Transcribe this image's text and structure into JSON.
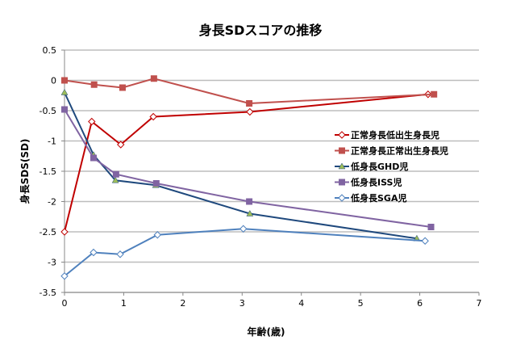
{
  "chart_data": {
    "type": "line",
    "title": "身長SDスコアの推移",
    "xlabel": "年齢(歳)",
    "ylabel": "身長SDS(SD)",
    "xlim": [
      0,
      7
    ],
    "ylim": [
      -3.5,
      0.5
    ],
    "xticks": [
      "0",
      "1",
      "2",
      "3",
      "4",
      "5",
      "6",
      "7"
    ],
    "yticks": [
      "0.5",
      "0",
      "-0.5",
      "-1",
      "-1.5",
      "-2",
      "-2.5",
      "-3",
      "-3.5"
    ],
    "grid": "horizontal",
    "legend": "right",
    "series": [
      {
        "name": "正常身長低出生身長児",
        "color": "#c00000",
        "marker": "diamond-open",
        "x": [
          0,
          0.46,
          0.95,
          1.5,
          3.13,
          6.14
        ],
        "y": [
          -2.5,
          -0.68,
          -1.06,
          -0.6,
          -0.52,
          -0.23
        ]
      },
      {
        "name": "正常身長正常出生身長児",
        "color": "#c0504d",
        "marker": "square",
        "x": [
          0,
          0.5,
          0.98,
          1.51,
          3.12,
          6.24
        ],
        "y": [
          0,
          -0.07,
          -0.12,
          0.03,
          -0.38,
          -0.23
        ]
      },
      {
        "name": "低身長GHD児",
        "color": "#1f497d",
        "marker": "triangle",
        "markerColor": "#9bbb59",
        "x": [
          0,
          0.49,
          0.86,
          1.54,
          3.13,
          5.95
        ],
        "y": [
          -0.2,
          -1.23,
          -1.65,
          -1.73,
          -2.2,
          -2.61
        ]
      },
      {
        "name": "低身長ISS児",
        "color": "#8064a2",
        "marker": "square",
        "x": [
          0,
          0.49,
          0.87,
          1.55,
          3.12,
          6.19
        ],
        "y": [
          -0.48,
          -1.28,
          -1.55,
          -1.7,
          -2.0,
          -2.42
        ]
      },
      {
        "name": "低身長SGA児",
        "color": "#4f81bd",
        "marker": "diamond-open",
        "x": [
          0,
          0.49,
          0.94,
          1.57,
          3.02,
          6.09
        ],
        "y": [
          -3.23,
          -2.84,
          -2.87,
          -2.55,
          -2.45,
          -2.65
        ]
      }
    ]
  }
}
